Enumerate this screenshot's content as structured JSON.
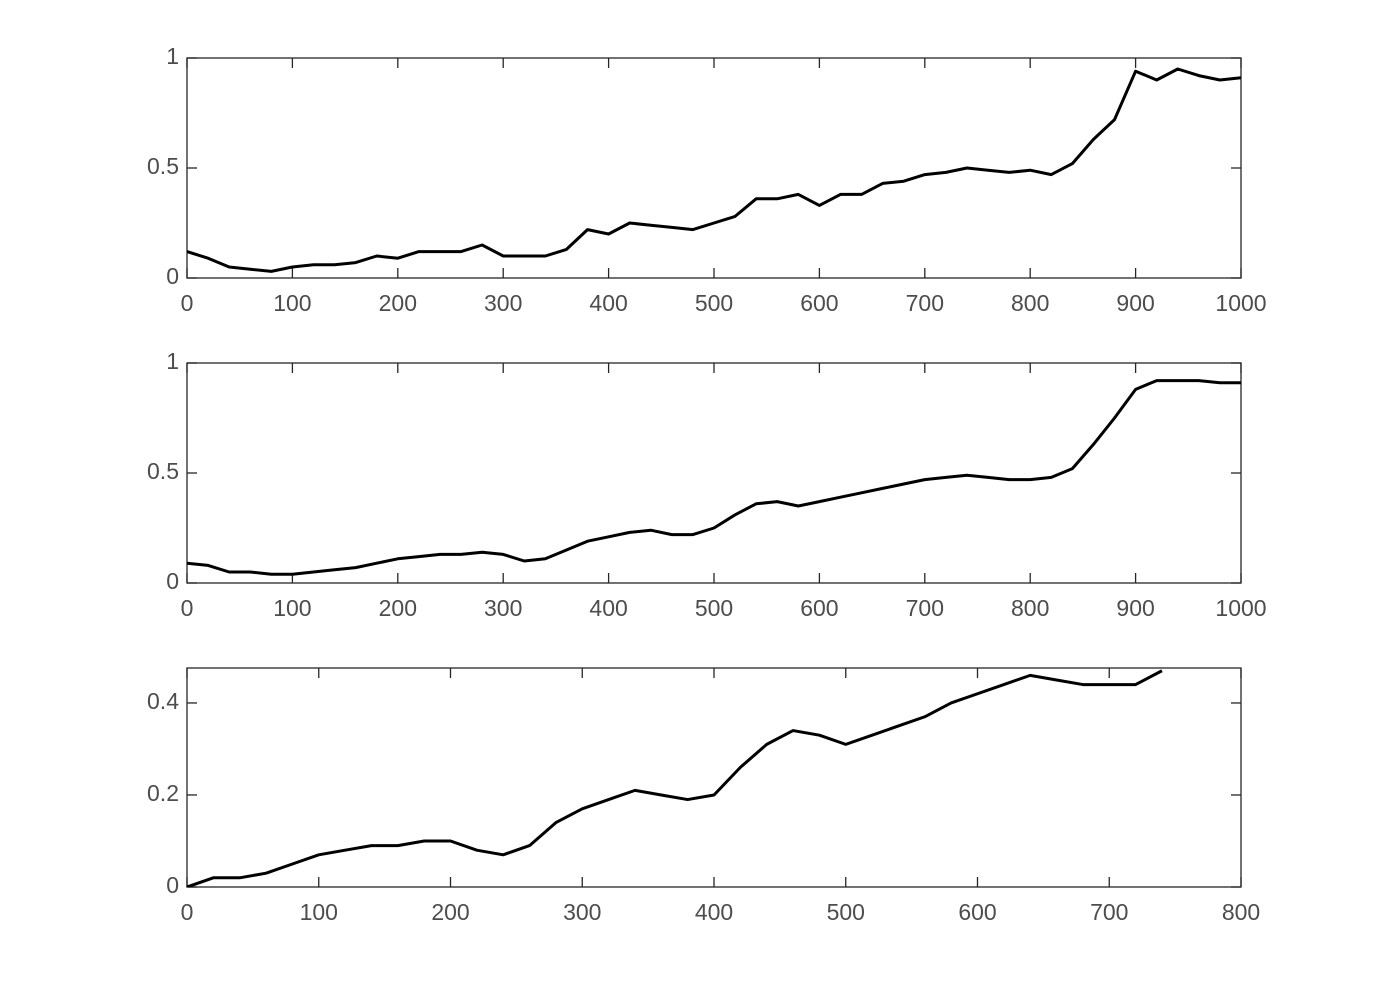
{
  "chart_data": [
    {
      "type": "line",
      "color": "#000000",
      "x": [
        0,
        20,
        40,
        60,
        80,
        100,
        120,
        140,
        160,
        180,
        200,
        220,
        240,
        260,
        280,
        300,
        320,
        340,
        360,
        380,
        400,
        420,
        440,
        460,
        480,
        500,
        520,
        540,
        560,
        580,
        600,
        620,
        640,
        660,
        680,
        700,
        720,
        740,
        760,
        780,
        800,
        820,
        840,
        860,
        880,
        900,
        920,
        940,
        960,
        980,
        1000
      ],
      "values": [
        0.12,
        0.09,
        0.05,
        0.04,
        0.03,
        0.05,
        0.06,
        0.06,
        0.07,
        0.1,
        0.09,
        0.12,
        0.12,
        0.12,
        0.15,
        0.1,
        0.1,
        0.1,
        0.13,
        0.22,
        0.2,
        0.25,
        0.24,
        0.23,
        0.22,
        0.25,
        0.28,
        0.36,
        0.36,
        0.38,
        0.33,
        0.38,
        0.38,
        0.43,
        0.44,
        0.47,
        0.48,
        0.5,
        0.49,
        0.48,
        0.49,
        0.47,
        0.52,
        0.63,
        0.72,
        0.94,
        0.9,
        0.95,
        0.92,
        0.9,
        0.91
      ],
      "xlim": [
        0,
        1000
      ],
      "xticks": [
        0,
        100,
        200,
        300,
        400,
        500,
        600,
        700,
        800,
        900,
        1000
      ],
      "ylim": [
        0,
        1
      ],
      "yticks": [
        0,
        0.5,
        1
      ]
    },
    {
      "type": "line",
      "color": "#000000",
      "x": [
        0,
        20,
        40,
        60,
        80,
        100,
        120,
        140,
        160,
        180,
        200,
        220,
        240,
        260,
        280,
        300,
        320,
        340,
        360,
        380,
        400,
        420,
        440,
        460,
        480,
        500,
        520,
        540,
        560,
        580,
        600,
        620,
        640,
        660,
        680,
        700,
        720,
        740,
        760,
        780,
        800,
        820,
        840,
        860,
        880,
        900,
        920,
        940,
        960,
        980,
        1000
      ],
      "values": [
        0.09,
        0.08,
        0.05,
        0.05,
        0.04,
        0.04,
        0.05,
        0.06,
        0.07,
        0.09,
        0.11,
        0.12,
        0.13,
        0.13,
        0.14,
        0.13,
        0.1,
        0.11,
        0.15,
        0.19,
        0.21,
        0.23,
        0.24,
        0.22,
        0.22,
        0.25,
        0.31,
        0.36,
        0.37,
        0.35,
        0.37,
        0.39,
        0.41,
        0.43,
        0.45,
        0.47,
        0.48,
        0.49,
        0.48,
        0.47,
        0.47,
        0.48,
        0.52,
        0.63,
        0.75,
        0.88,
        0.92,
        0.92,
        0.92,
        0.91,
        0.91
      ],
      "xlim": [
        0,
        1000
      ],
      "xticks": [
        0,
        100,
        200,
        300,
        400,
        500,
        600,
        700,
        800,
        900,
        1000
      ],
      "ylim": [
        0,
        1
      ],
      "yticks": [
        0,
        0.5,
        1
      ]
    },
    {
      "type": "line",
      "color": "#000000",
      "x": [
        0,
        20,
        40,
        60,
        80,
        100,
        120,
        140,
        160,
        180,
        200,
        220,
        240,
        260,
        280,
        300,
        320,
        340,
        360,
        380,
        400,
        420,
        440,
        460,
        480,
        500,
        520,
        540,
        560,
        580,
        600,
        620,
        640,
        660,
        680,
        700,
        720,
        740
      ],
      "values": [
        0,
        0.02,
        0.02,
        0.03,
        0.05,
        0.07,
        0.08,
        0.09,
        0.09,
        0.1,
        0.1,
        0.08,
        0.07,
        0.09,
        0.14,
        0.17,
        0.19,
        0.21,
        0.2,
        0.19,
        0.2,
        0.26,
        0.31,
        0.34,
        0.33,
        0.31,
        0.33,
        0.35,
        0.37,
        0.4,
        0.42,
        0.44,
        0.46,
        0.45,
        0.44,
        0.44,
        0.44,
        0.47
      ],
      "xlim": [
        0,
        800
      ],
      "xticks": [
        0,
        100,
        200,
        300,
        400,
        500,
        600,
        700,
        800
      ],
      "ylim": [
        0,
        0.476
      ],
      "yticks": [
        0,
        0.2,
        0.4
      ]
    }
  ]
}
